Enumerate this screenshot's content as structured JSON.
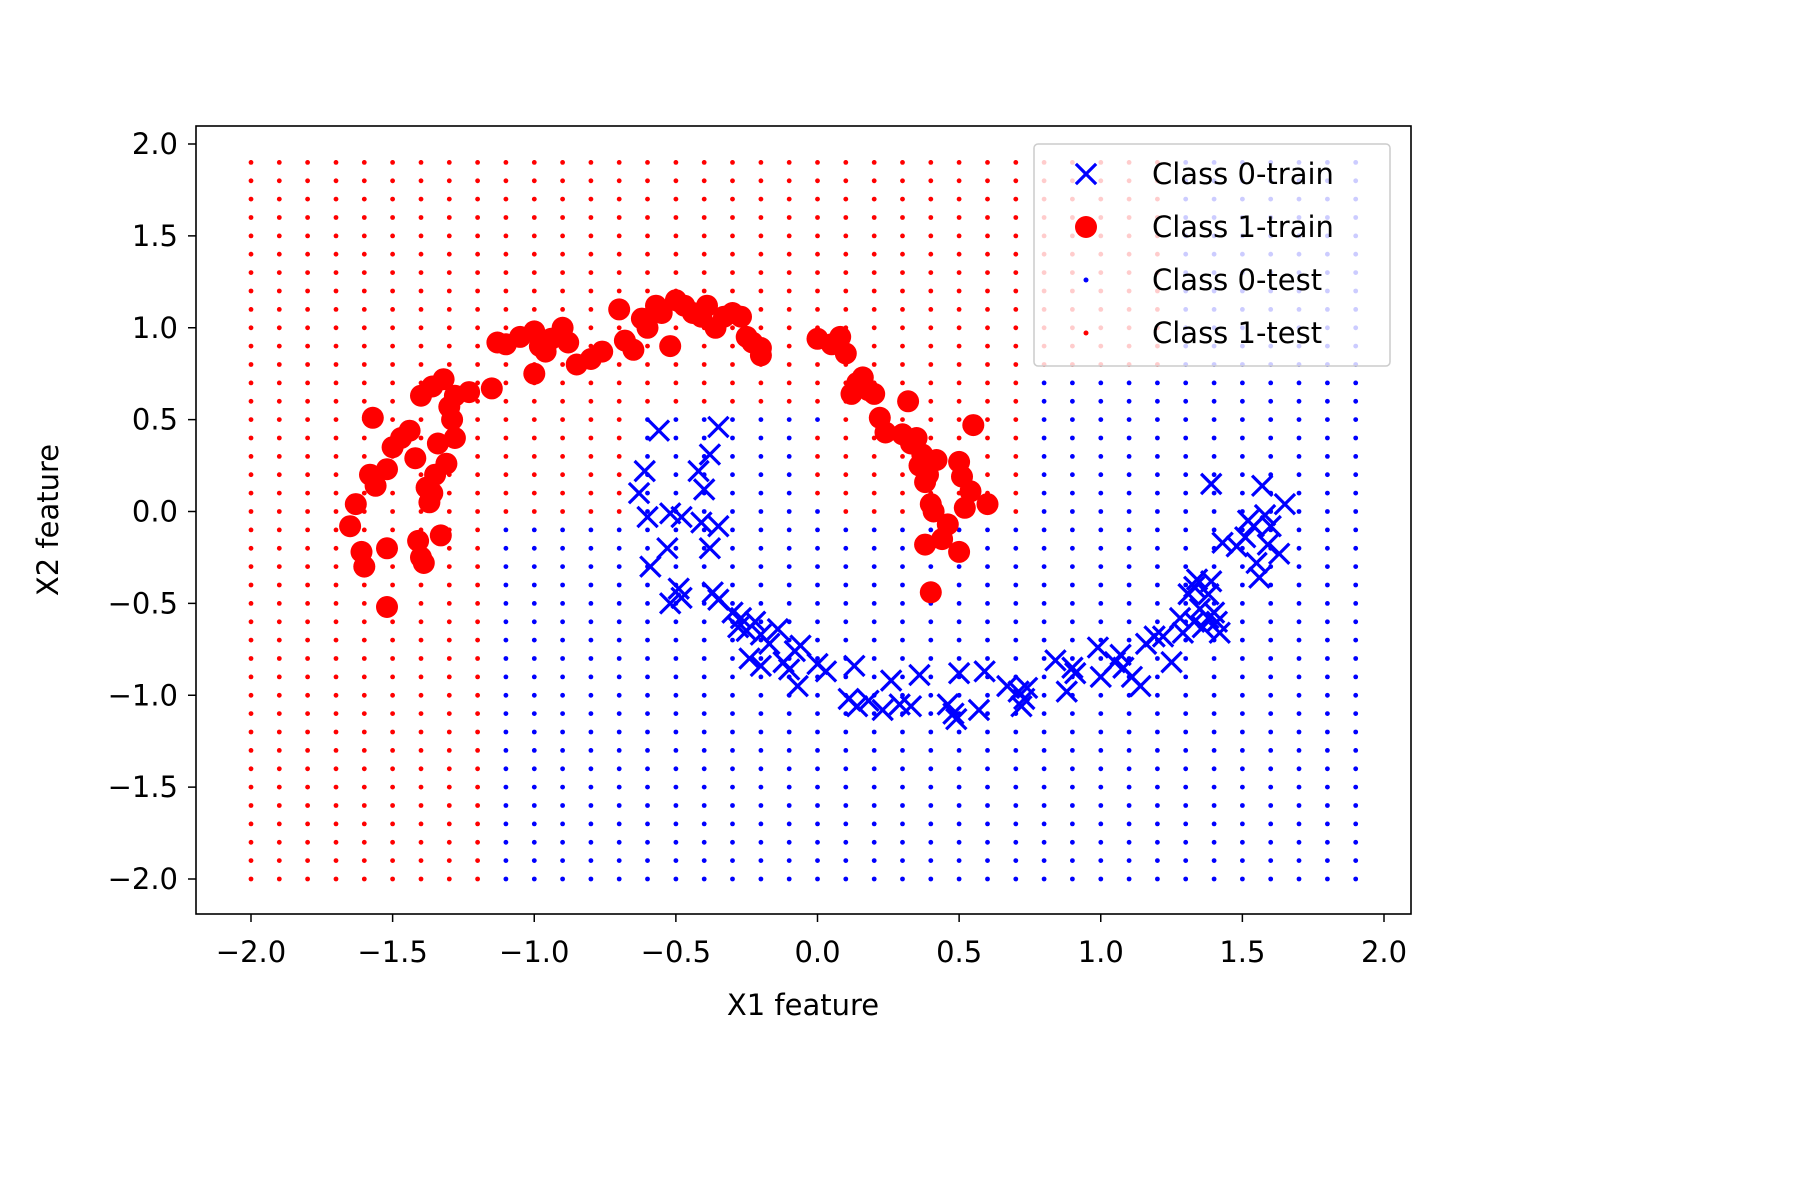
{
  "chart_data": {
    "type": "scatter",
    "title": "",
    "xlabel": "X1 feature",
    "ylabel": "X2 feature",
    "xlim": [
      -2.2,
      2.1
    ],
    "ylim": [
      -2.2,
      2.1
    ],
    "xticks": [
      -2.0,
      -1.5,
      -1.0,
      -0.5,
      0.0,
      0.5,
      1.0,
      1.5,
      2.0
    ],
    "yticks": [
      -2.0,
      -1.5,
      -1.0,
      -0.5,
      0.0,
      0.5,
      1.0,
      1.5,
      2.0
    ],
    "xtick_labels": [
      "−2.0",
      "−1.5",
      "−1.0",
      "−0.5",
      "0.0",
      "0.5",
      "1.0",
      "1.5",
      "2.0"
    ],
    "ytick_labels": [
      "−2.0",
      "−1.5",
      "−1.0",
      "−0.5",
      "0.0",
      "0.5",
      "1.0",
      "1.5",
      "2.0"
    ],
    "grid": false,
    "legend_position": "top-right",
    "test_grid": {
      "x_start": -2.0,
      "x_end": 1.9,
      "x_step": 0.1,
      "y_start": -2.0,
      "y_end": 1.9,
      "y_step": 0.1,
      "class1_color": "#ff0000",
      "class0_color": "#0000ff",
      "decision_rule": "a point is labelled Class 0 when it lies inside the band between a lower arc (center 0.5, 0.25, radius 1.0) and an upper arc (center 0.5, 0.25, radius 0.6) opened toward the top; otherwise Class 1"
    },
    "series": [
      {
        "name": "Class 0-train",
        "marker": "x",
        "color": "#0000ff",
        "points": [
          [
            -0.56,
            0.44
          ],
          [
            -0.61,
            0.22
          ],
          [
            -0.63,
            0.1
          ],
          [
            -0.6,
            -0.03
          ],
          [
            -0.52,
            -0.01
          ],
          [
            -0.48,
            -0.03
          ],
          [
            -0.42,
            0.22
          ],
          [
            -0.38,
            0.31
          ],
          [
            -0.35,
            0.46
          ],
          [
            -0.4,
            0.12
          ],
          [
            -0.41,
            -0.06
          ],
          [
            -0.35,
            -0.08
          ],
          [
            -0.38,
            -0.2
          ],
          [
            -0.53,
            -0.2
          ],
          [
            -0.59,
            -0.3
          ],
          [
            -0.49,
            -0.42
          ],
          [
            -0.52,
            -0.5
          ],
          [
            -0.48,
            -0.47
          ],
          [
            -0.37,
            -0.44
          ],
          [
            -0.35,
            -0.48
          ],
          [
            -0.3,
            -0.55
          ],
          [
            -0.27,
            -0.58
          ],
          [
            -0.28,
            -0.63
          ],
          [
            -0.25,
            -0.65
          ],
          [
            -0.22,
            -0.6
          ],
          [
            -0.2,
            -0.67
          ],
          [
            -0.17,
            -0.72
          ],
          [
            -0.14,
            -0.64
          ],
          [
            -0.24,
            -0.8
          ],
          [
            -0.2,
            -0.84
          ],
          [
            -0.12,
            -0.82
          ],
          [
            -0.08,
            -0.76
          ],
          [
            -0.06,
            -0.73
          ],
          [
            -0.1,
            -0.86
          ],
          [
            -0.07,
            -0.95
          ],
          [
            0.0,
            -0.83
          ],
          [
            0.03,
            -0.87
          ],
          [
            0.13,
            -0.84
          ],
          [
            0.11,
            -1.02
          ],
          [
            0.14,
            -1.06
          ],
          [
            0.18,
            -1.03
          ],
          [
            0.23,
            -1.08
          ],
          [
            0.26,
            -0.92
          ],
          [
            0.29,
            -1.05
          ],
          [
            0.36,
            -0.89
          ],
          [
            0.33,
            -1.06
          ],
          [
            0.46,
            -1.05
          ],
          [
            0.48,
            -1.1
          ],
          [
            0.49,
            -1.13
          ],
          [
            0.5,
            -0.88
          ],
          [
            0.57,
            -1.08
          ],
          [
            0.59,
            -0.87
          ],
          [
            0.67,
            -0.95
          ],
          [
            0.71,
            -0.98
          ],
          [
            0.73,
            -1.02
          ],
          [
            0.72,
            -1.06
          ],
          [
            0.74,
            -0.96
          ],
          [
            0.84,
            -0.81
          ],
          [
            0.88,
            -0.98
          ],
          [
            0.9,
            -0.85
          ],
          [
            0.91,
            -0.88
          ],
          [
            0.99,
            -0.74
          ],
          [
            1.0,
            -0.9
          ],
          [
            1.05,
            -0.82
          ],
          [
            1.07,
            -0.78
          ],
          [
            1.08,
            -0.85
          ],
          [
            1.11,
            -0.9
          ],
          [
            1.14,
            -0.95
          ],
          [
            1.16,
            -0.72
          ],
          [
            1.19,
            -0.68
          ],
          [
            1.25,
            -0.82
          ],
          [
            1.28,
            -0.58
          ],
          [
            1.31,
            -0.45
          ],
          [
            1.33,
            -0.41
          ],
          [
            1.34,
            -0.37
          ],
          [
            1.35,
            -0.53
          ],
          [
            1.36,
            -0.63
          ],
          [
            1.38,
            -0.45
          ],
          [
            1.39,
            -0.38
          ],
          [
            1.4,
            -0.55
          ],
          [
            1.41,
            -0.6
          ],
          [
            1.42,
            -0.66
          ],
          [
            1.43,
            -0.17
          ],
          [
            1.39,
            0.15
          ],
          [
            1.48,
            -0.19
          ],
          [
            1.51,
            -0.14
          ],
          [
            1.52,
            -0.05
          ],
          [
            1.55,
            -0.28
          ],
          [
            1.56,
            -0.36
          ],
          [
            1.57,
            0.14
          ],
          [
            1.58,
            -0.02
          ],
          [
            1.59,
            -0.18
          ],
          [
            1.6,
            -0.08
          ],
          [
            1.63,
            -0.23
          ],
          [
            1.65,
            0.04
          ],
          [
            1.54,
            -0.08
          ],
          [
            1.29,
            -0.66
          ],
          [
            1.38,
            -0.58
          ],
          [
            1.22,
            -0.68
          ],
          [
            1.33,
            -0.6
          ]
        ]
      },
      {
        "name": "Class 1-train",
        "marker": "o",
        "color": "#ff0000",
        "points": [
          [
            -1.65,
            -0.08
          ],
          [
            -1.63,
            0.04
          ],
          [
            -1.61,
            -0.22
          ],
          [
            -1.6,
            -0.3
          ],
          [
            -1.58,
            0.2
          ],
          [
            -1.57,
            0.51
          ],
          [
            -1.56,
            0.14
          ],
          [
            -1.52,
            -0.2
          ],
          [
            -1.52,
            -0.52
          ],
          [
            -1.52,
            0.23
          ],
          [
            -1.5,
            0.35
          ],
          [
            -1.47,
            0.4
          ],
          [
            -1.44,
            0.44
          ],
          [
            -1.42,
            0.29
          ],
          [
            -1.41,
            -0.16
          ],
          [
            -1.4,
            -0.25
          ],
          [
            -1.39,
            -0.28
          ],
          [
            -1.38,
            0.13
          ],
          [
            -1.37,
            0.05
          ],
          [
            -1.36,
            0.1
          ],
          [
            -1.35,
            0.2
          ],
          [
            -1.34,
            0.37
          ],
          [
            -1.33,
            -0.13
          ],
          [
            -1.31,
            0.26
          ],
          [
            -1.3,
            0.57
          ],
          [
            -1.29,
            0.5
          ],
          [
            -1.28,
            0.4
          ],
          [
            -1.28,
            0.63
          ],
          [
            -1.32,
            0.72
          ],
          [
            -1.36,
            0.68
          ],
          [
            -1.4,
            0.63
          ],
          [
            -1.23,
            0.65
          ],
          [
            -1.15,
            0.67
          ],
          [
            -1.13,
            0.92
          ],
          [
            -1.1,
            0.91
          ],
          [
            -1.05,
            0.95
          ],
          [
            -1.0,
            0.98
          ],
          [
            -0.98,
            0.9
          ],
          [
            -1.0,
            0.75
          ],
          [
            -0.96,
            0.87
          ],
          [
            -0.94,
            0.94
          ],
          [
            -0.9,
            1.0
          ],
          [
            -0.88,
            0.92
          ],
          [
            -0.85,
            0.8
          ],
          [
            -0.8,
            0.83
          ],
          [
            -0.76,
            0.87
          ],
          [
            -0.7,
            1.1
          ],
          [
            -0.68,
            0.93
          ],
          [
            -0.65,
            0.88
          ],
          [
            -0.62,
            1.05
          ],
          [
            -0.6,
            1.0
          ],
          [
            -0.57,
            1.12
          ],
          [
            -0.55,
            1.08
          ],
          [
            -0.52,
            0.9
          ],
          [
            -0.5,
            1.15
          ],
          [
            -0.47,
            1.12
          ],
          [
            -0.44,
            1.08
          ],
          [
            -0.41,
            1.06
          ],
          [
            -0.39,
            1.12
          ],
          [
            -0.36,
            1.0
          ],
          [
            -0.33,
            1.06
          ],
          [
            -0.3,
            1.08
          ],
          [
            -0.27,
            1.06
          ],
          [
            -0.25,
            0.95
          ],
          [
            -0.23,
            0.92
          ],
          [
            -0.2,
            0.85
          ],
          [
            -0.2,
            0.89
          ],
          [
            0.0,
            0.94
          ],
          [
            0.05,
            0.91
          ],
          [
            0.1,
            0.86
          ],
          [
            0.12,
            0.64
          ],
          [
            0.14,
            0.7
          ],
          [
            0.16,
            0.73
          ],
          [
            0.18,
            0.66
          ],
          [
            0.2,
            0.64
          ],
          [
            0.22,
            0.51
          ],
          [
            0.24,
            0.43
          ],
          [
            0.3,
            0.42
          ],
          [
            0.32,
            0.6
          ],
          [
            0.33,
            0.37
          ],
          [
            0.35,
            0.4
          ],
          [
            0.36,
            0.25
          ],
          [
            0.37,
            0.31
          ],
          [
            0.38,
            0.16
          ],
          [
            0.39,
            0.2
          ],
          [
            0.4,
            0.04
          ],
          [
            0.41,
            0.0
          ],
          [
            0.42,
            0.28
          ],
          [
            0.44,
            -0.15
          ],
          [
            0.46,
            -0.07
          ],
          [
            0.5,
            0.27
          ],
          [
            0.51,
            0.19
          ],
          [
            0.52,
            0.02
          ],
          [
            0.54,
            0.11
          ],
          [
            0.55,
            0.47
          ],
          [
            0.6,
            0.04
          ],
          [
            0.5,
            -0.22
          ],
          [
            0.38,
            -0.18
          ],
          [
            0.4,
            -0.44
          ],
          [
            0.08,
            0.95
          ]
        ]
      },
      {
        "name": "Class 0-test",
        "marker": ".",
        "color": "#0000ff"
      },
      {
        "name": "Class 1-test",
        "marker": ".",
        "color": "#ff0000"
      }
    ]
  }
}
